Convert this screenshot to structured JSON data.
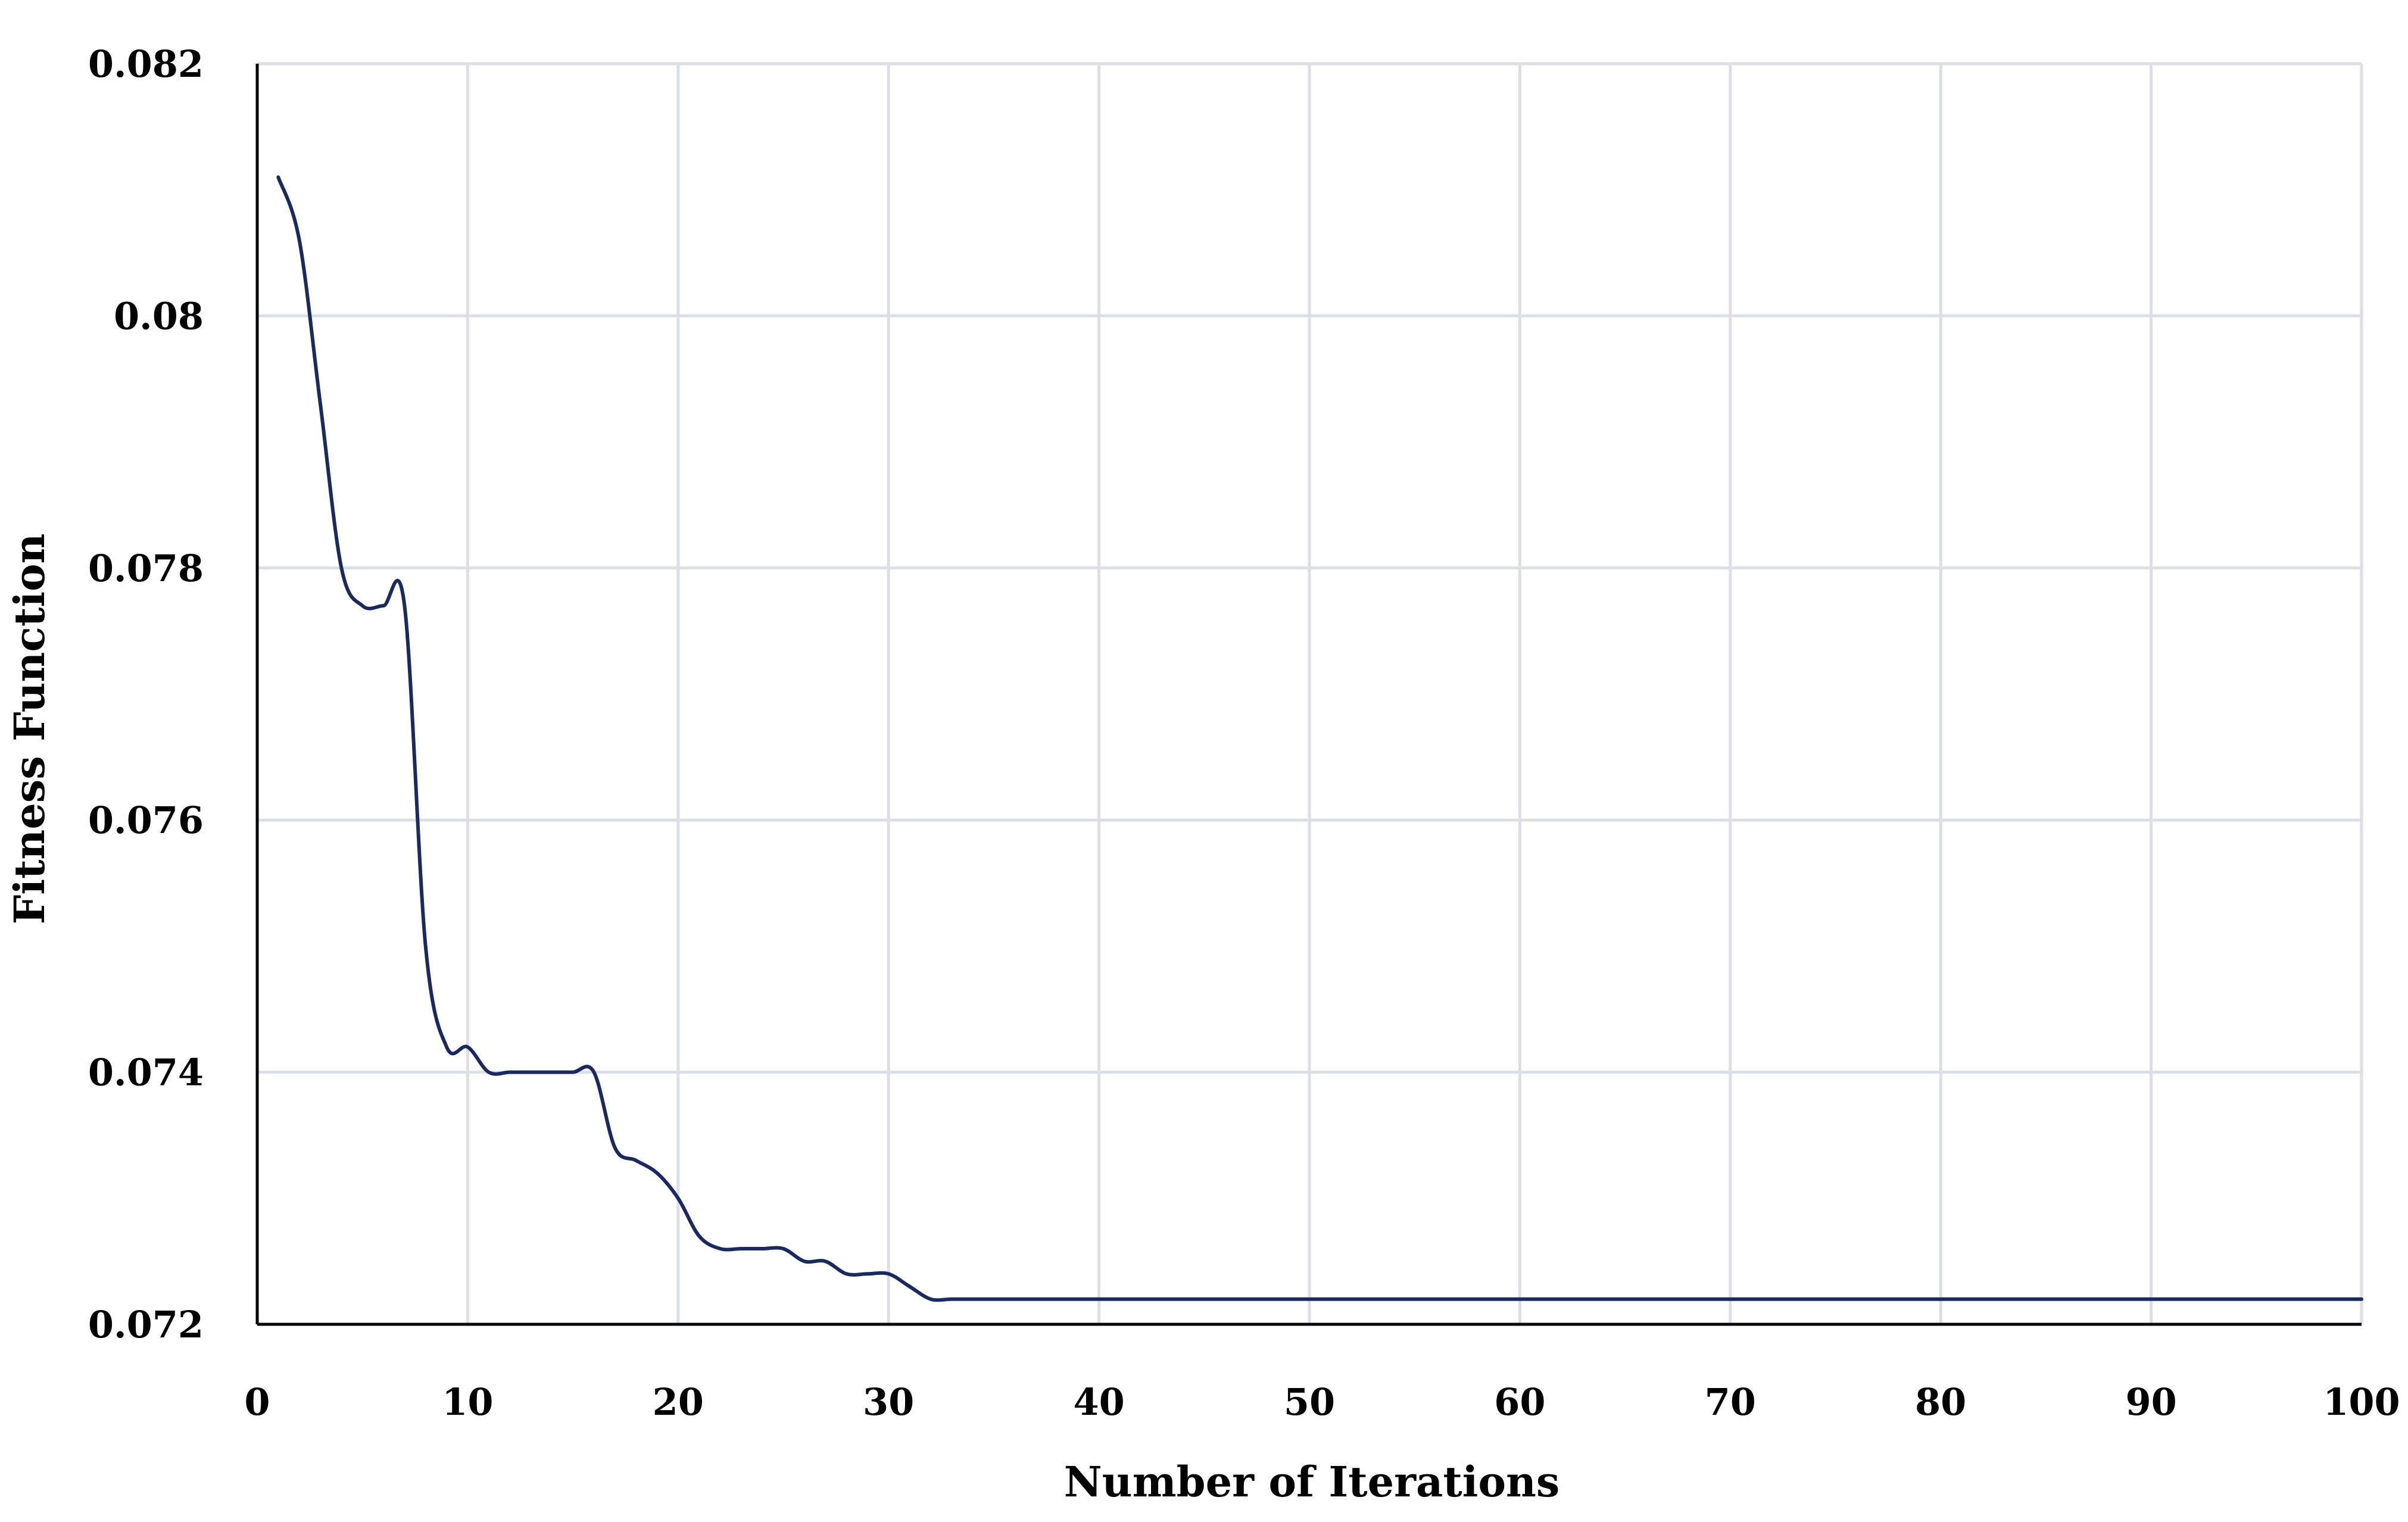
{
  "chart_data": {
    "type": "line",
    "title": "",
    "xlabel": "Number of Iterations",
    "ylabel": "Fitness Function",
    "xlim": [
      0,
      100
    ],
    "ylim": [
      0.072,
      0.082
    ],
    "x_ticks": [
      "0",
      "10",
      "20",
      "30",
      "40",
      "50",
      "60",
      "70",
      "80",
      "90",
      "100"
    ],
    "y_ticks": [
      "0.072",
      "0.074",
      "0.076",
      "0.078",
      "0.08",
      "0.082"
    ],
    "grid": true,
    "legend": "none",
    "series": [
      {
        "color": "#1a2a5e",
        "x": [
          1,
          2,
          3,
          4,
          5,
          6,
          7,
          8,
          9,
          10,
          11,
          12,
          13,
          14,
          15,
          16,
          17,
          18,
          19,
          20,
          21,
          22,
          23,
          24,
          25,
          26,
          27,
          28,
          29,
          30,
          31,
          32,
          33,
          34,
          35,
          40,
          50,
          60,
          70,
          80,
          90,
          100
        ],
        "y": [
          0.0811,
          0.0806,
          0.0793,
          0.078,
          0.0777,
          0.0777,
          0.0777,
          0.075,
          0.0742,
          0.0742,
          0.074,
          0.074,
          0.074,
          0.074,
          0.074,
          0.074,
          0.0734,
          0.0733,
          0.0732,
          0.073,
          0.0727,
          0.0726,
          0.0726,
          0.0726,
          0.0726,
          0.0725,
          0.0725,
          0.0724,
          0.0724,
          0.0724,
          0.0723,
          0.0722,
          0.0722,
          0.0722,
          0.0722,
          0.0722,
          0.0722,
          0.0722,
          0.0722,
          0.0722,
          0.0722,
          0.0722
        ]
      }
    ],
    "colors": {
      "line": "#1a2a5e",
      "grid": "#dcdfe6",
      "axis": "#000000"
    }
  }
}
